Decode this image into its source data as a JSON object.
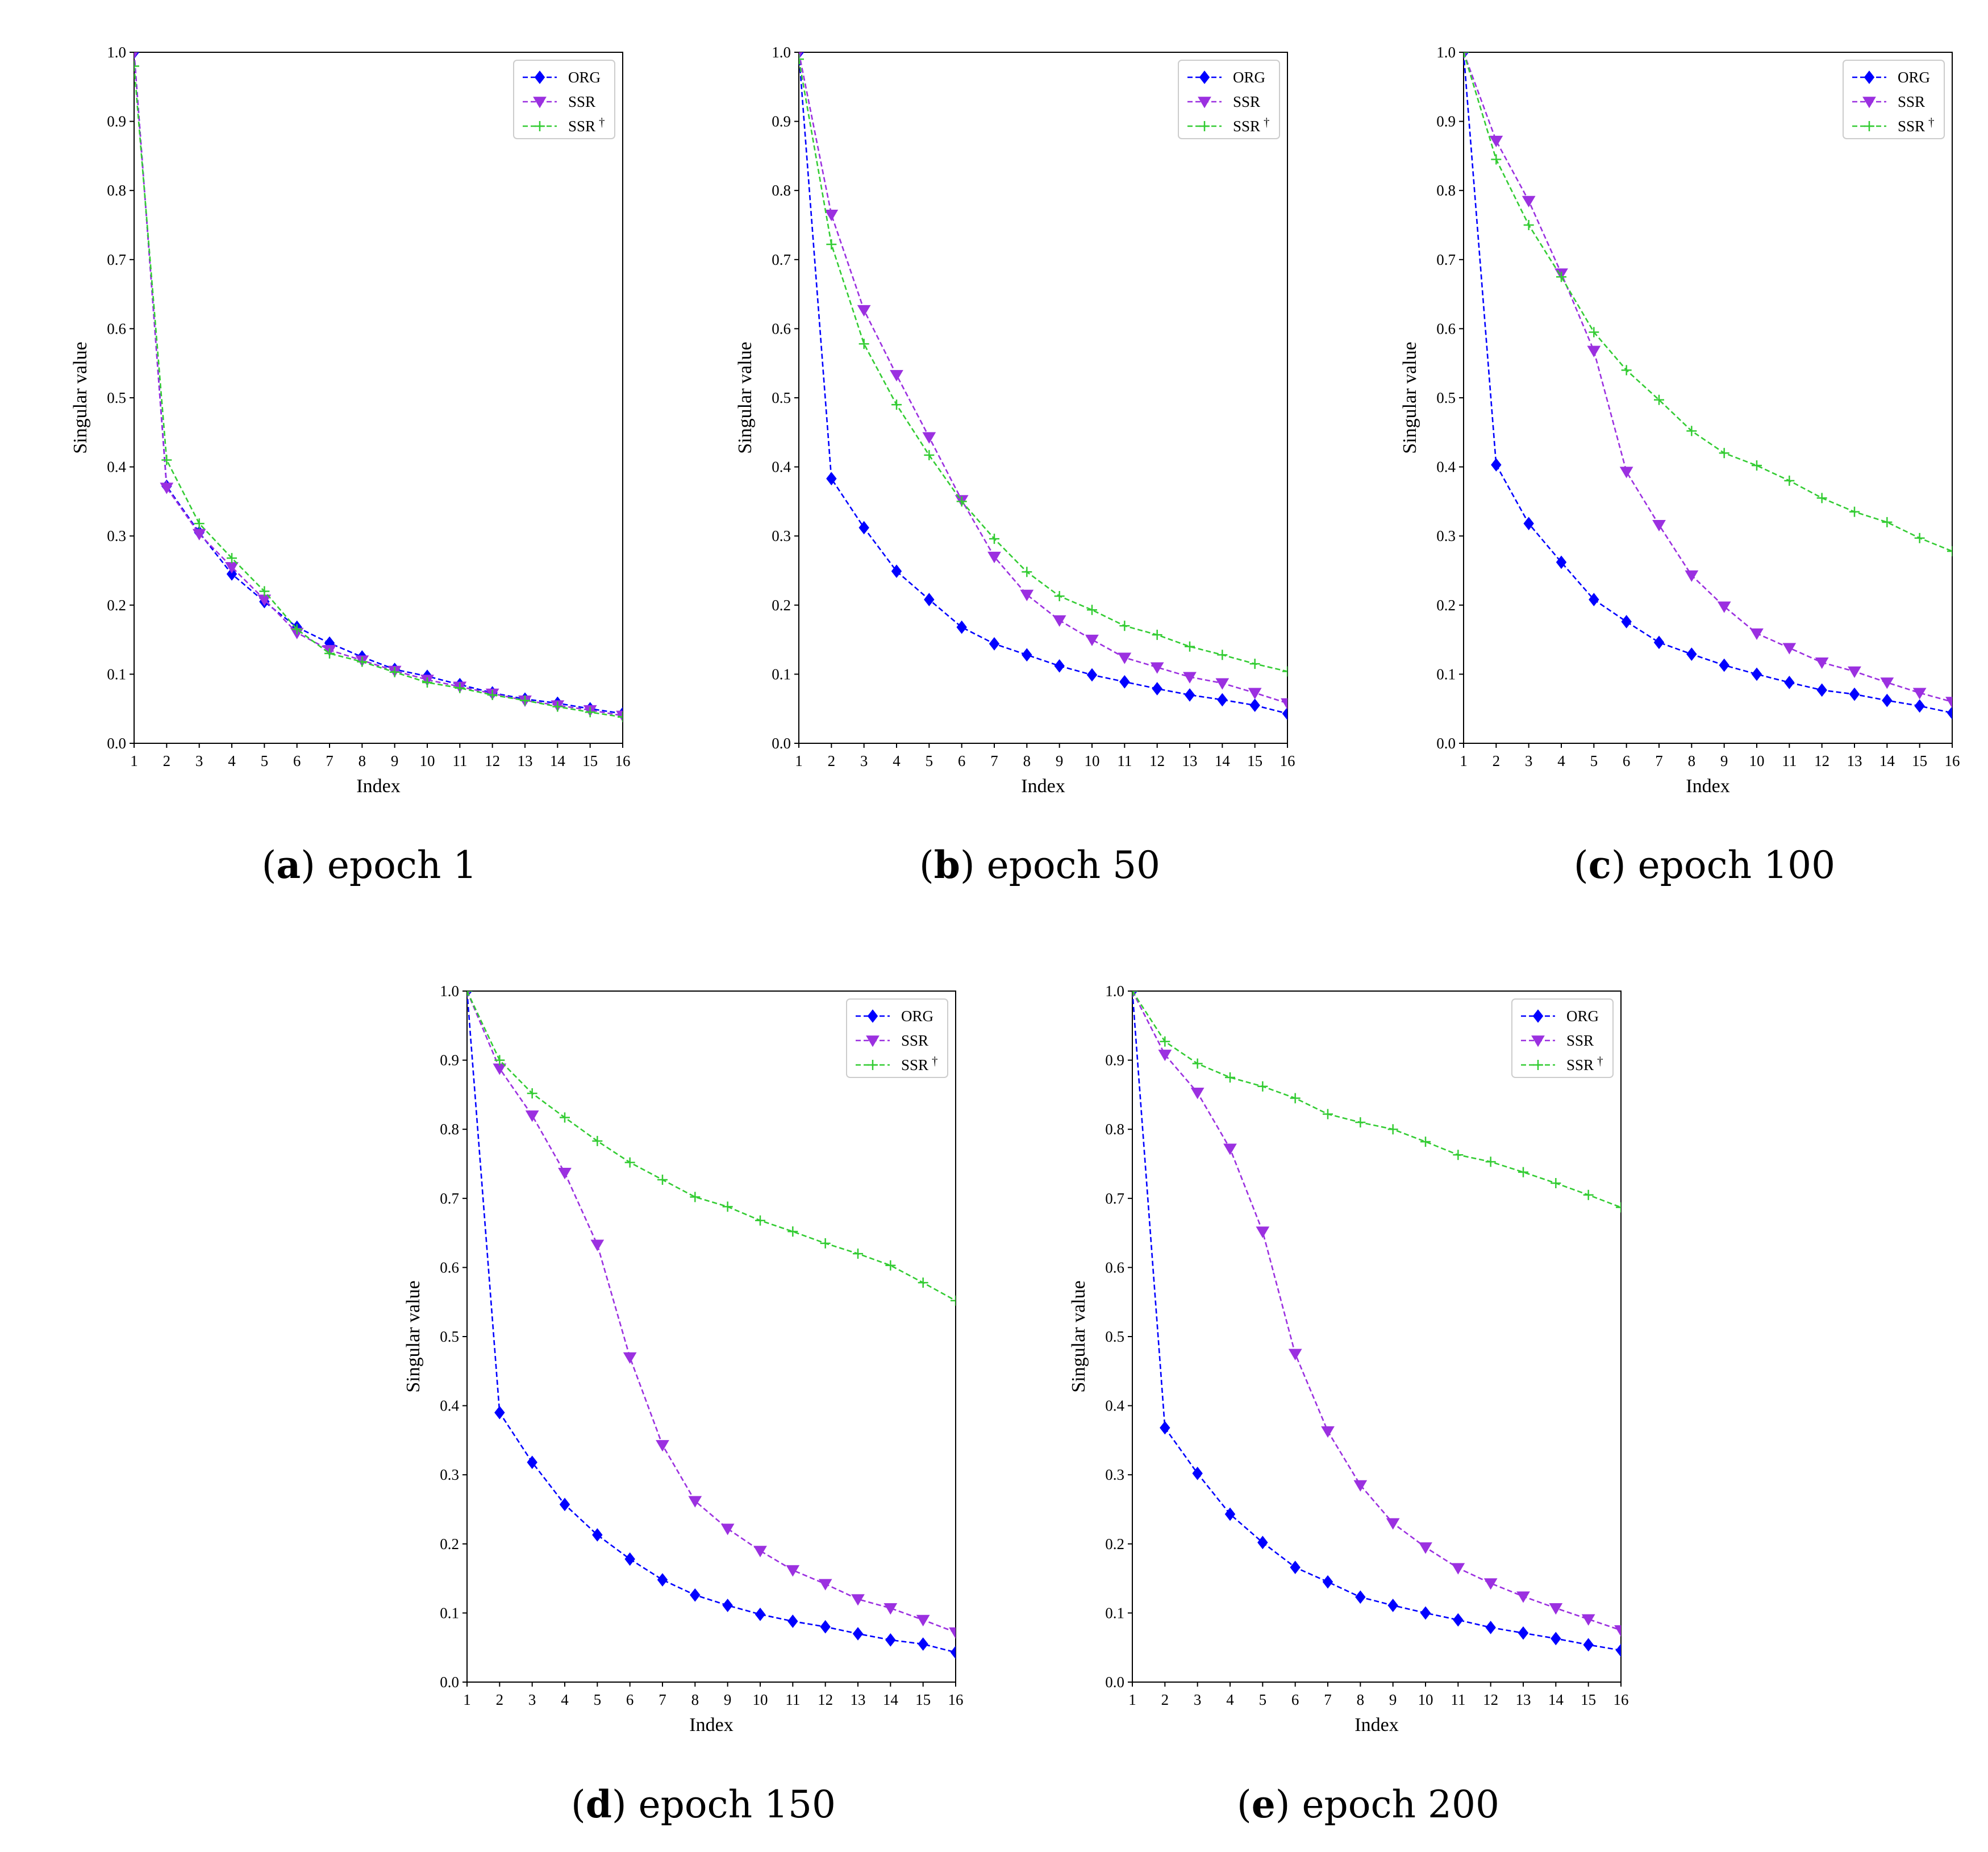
{
  "colors": {
    "ORG": "#0000ff",
    "SSR": "#9b30e0",
    "SSR_dagger": "#33cc33",
    "axis": "#000000"
  },
  "chart_data": [
    {
      "type": "line",
      "caption_letter": "a",
      "caption_text": " epoch 1",
      "xlabel": "Index",
      "ylabel": "Singular value",
      "xlim": [
        1,
        16
      ],
      "ylim": [
        0.0,
        1.0
      ],
      "xticks": [
        "1",
        "2",
        "3",
        "4",
        "5",
        "6",
        "7",
        "8",
        "9",
        "10",
        "11",
        "12",
        "13",
        "14",
        "15",
        "16"
      ],
      "yticks": [
        "0.0",
        "0.1",
        "0.2",
        "0.3",
        "0.4",
        "0.5",
        "0.6",
        "0.7",
        "0.8",
        "0.9",
        "1.0"
      ],
      "legend": "top-right",
      "x": [
        1,
        2,
        3,
        4,
        5,
        6,
        7,
        8,
        9,
        10,
        11,
        12,
        13,
        14,
        15,
        16
      ],
      "series": [
        {
          "name": "ORG",
          "legend_label": "ORG",
          "marker": "diamond",
          "values": [
            1.0,
            0.372,
            0.305,
            0.245,
            0.205,
            0.168,
            0.145,
            0.125,
            0.107,
            0.097,
            0.085,
            0.073,
            0.064,
            0.058,
            0.05,
            0.043
          ]
        },
        {
          "name": "SSR",
          "legend_label": "SSR",
          "marker": "triangle-down",
          "values": [
            1.0,
            0.37,
            0.303,
            0.255,
            0.208,
            0.16,
            0.135,
            0.12,
            0.105,
            0.092,
            0.082,
            0.072,
            0.062,
            0.055,
            0.048,
            0.04
          ]
        },
        {
          "name": "SSR_dagger",
          "legend_label": "SSR",
          "legend_sup": "†",
          "marker": "plus",
          "values": [
            0.98,
            0.41,
            0.318,
            0.268,
            0.22,
            0.165,
            0.13,
            0.118,
            0.103,
            0.088,
            0.08,
            0.07,
            0.062,
            0.053,
            0.045,
            0.038
          ]
        }
      ]
    },
    {
      "type": "line",
      "caption_letter": "b",
      "caption_text": " epoch 50",
      "xlabel": "Index",
      "ylabel": "Singular value",
      "xlim": [
        1,
        16
      ],
      "ylim": [
        0.0,
        1.0
      ],
      "xticks": [
        "1",
        "2",
        "3",
        "4",
        "5",
        "6",
        "7",
        "8",
        "9",
        "10",
        "11",
        "12",
        "13",
        "14",
        "15",
        "16"
      ],
      "yticks": [
        "0.0",
        "0.1",
        "0.2",
        "0.3",
        "0.4",
        "0.5",
        "0.6",
        "0.7",
        "0.8",
        "0.9",
        "1.0"
      ],
      "legend": "top-right",
      "x": [
        1,
        2,
        3,
        4,
        5,
        6,
        7,
        8,
        9,
        10,
        11,
        12,
        13,
        14,
        15,
        16
      ],
      "series": [
        {
          "name": "ORG",
          "legend_label": "ORG",
          "marker": "diamond",
          "values": [
            1.0,
            0.383,
            0.312,
            0.249,
            0.208,
            0.168,
            0.144,
            0.128,
            0.112,
            0.099,
            0.089,
            0.079,
            0.07,
            0.063,
            0.055,
            0.043
          ]
        },
        {
          "name": "SSR",
          "legend_label": "SSR",
          "marker": "triangle-down",
          "values": [
            1.0,
            0.765,
            0.627,
            0.533,
            0.443,
            0.352,
            0.27,
            0.215,
            0.178,
            0.15,
            0.124,
            0.11,
            0.096,
            0.087,
            0.073,
            0.058
          ]
        },
        {
          "name": "SSR_dagger",
          "legend_label": "SSR",
          "legend_sup": "†",
          "marker": "plus",
          "values": [
            0.99,
            0.722,
            0.578,
            0.49,
            0.417,
            0.35,
            0.296,
            0.248,
            0.213,
            0.193,
            0.17,
            0.157,
            0.14,
            0.128,
            0.115,
            0.104
          ]
        }
      ]
    },
    {
      "type": "line",
      "caption_letter": "c",
      "caption_text": " epoch 100",
      "xlabel": "Index",
      "ylabel": "Singular value",
      "xlim": [
        1,
        16
      ],
      "ylim": [
        0.0,
        1.0
      ],
      "xticks": [
        "1",
        "2",
        "3",
        "4",
        "5",
        "6",
        "7",
        "8",
        "9",
        "10",
        "11",
        "12",
        "13",
        "14",
        "15",
        "16"
      ],
      "yticks": [
        "0.0",
        "0.1",
        "0.2",
        "0.3",
        "0.4",
        "0.5",
        "0.6",
        "0.7",
        "0.8",
        "0.9",
        "1.0"
      ],
      "legend": "top-right",
      "x": [
        1,
        2,
        3,
        4,
        5,
        6,
        7,
        8,
        9,
        10,
        11,
        12,
        13,
        14,
        15,
        16
      ],
      "series": [
        {
          "name": "ORG",
          "legend_label": "ORG",
          "marker": "diamond",
          "values": [
            1.0,
            0.403,
            0.318,
            0.262,
            0.208,
            0.176,
            0.146,
            0.129,
            0.113,
            0.1,
            0.088,
            0.077,
            0.071,
            0.062,
            0.054,
            0.044
          ]
        },
        {
          "name": "SSR",
          "legend_label": "SSR",
          "marker": "triangle-down",
          "values": [
            1.0,
            0.872,
            0.785,
            0.68,
            0.568,
            0.393,
            0.316,
            0.243,
            0.198,
            0.159,
            0.138,
            0.117,
            0.104,
            0.088,
            0.073,
            0.06
          ]
        },
        {
          "name": "SSR_dagger",
          "legend_label": "SSR",
          "legend_sup": "†",
          "marker": "plus",
          "values": [
            1.0,
            0.845,
            0.75,
            0.675,
            0.595,
            0.54,
            0.497,
            0.452,
            0.42,
            0.402,
            0.38,
            0.355,
            0.335,
            0.32,
            0.297,
            0.278
          ]
        }
      ]
    },
    {
      "type": "line",
      "caption_letter": "d",
      "caption_text": " epoch 150",
      "xlabel": "Index",
      "ylabel": "Singular value",
      "xlim": [
        1,
        16
      ],
      "ylim": [
        0.0,
        1.0
      ],
      "xticks": [
        "1",
        "2",
        "3",
        "4",
        "5",
        "6",
        "7",
        "8",
        "9",
        "10",
        "11",
        "12",
        "13",
        "14",
        "15",
        "16"
      ],
      "yticks": [
        "0.0",
        "0.1",
        "0.2",
        "0.3",
        "0.4",
        "0.5",
        "0.6",
        "0.7",
        "0.8",
        "0.9",
        "1.0"
      ],
      "legend": "top-right",
      "x": [
        1,
        2,
        3,
        4,
        5,
        6,
        7,
        8,
        9,
        10,
        11,
        12,
        13,
        14,
        15,
        16
      ],
      "series": [
        {
          "name": "ORG",
          "legend_label": "ORG",
          "marker": "diamond",
          "values": [
            1.0,
            0.39,
            0.318,
            0.257,
            0.213,
            0.178,
            0.148,
            0.126,
            0.111,
            0.098,
            0.088,
            0.08,
            0.07,
            0.061,
            0.055,
            0.043
          ]
        },
        {
          "name": "SSR",
          "legend_label": "SSR",
          "marker": "triangle-down",
          "values": [
            1.0,
            0.888,
            0.82,
            0.737,
            0.633,
            0.47,
            0.343,
            0.262,
            0.222,
            0.19,
            0.162,
            0.142,
            0.12,
            0.107,
            0.09,
            0.072
          ]
        },
        {
          "name": "SSR_dagger",
          "legend_label": "SSR",
          "legend_sup": "†",
          "marker": "plus",
          "values": [
            1.0,
            0.9,
            0.852,
            0.817,
            0.783,
            0.752,
            0.727,
            0.702,
            0.688,
            0.668,
            0.652,
            0.635,
            0.62,
            0.603,
            0.578,
            0.552
          ]
        }
      ]
    },
    {
      "type": "line",
      "caption_letter": "e",
      "caption_text": " epoch 200",
      "xlabel": "Index",
      "ylabel": "Singular value",
      "xlim": [
        1,
        16
      ],
      "ylim": [
        0.0,
        1.0
      ],
      "xticks": [
        "1",
        "2",
        "3",
        "4",
        "5",
        "6",
        "7",
        "8",
        "9",
        "10",
        "11",
        "12",
        "13",
        "14",
        "15",
        "16"
      ],
      "yticks": [
        "0.0",
        "0.1",
        "0.2",
        "0.3",
        "0.4",
        "0.5",
        "0.6",
        "0.7",
        "0.8",
        "0.9",
        "1.0"
      ],
      "legend": "top-right",
      "x": [
        1,
        2,
        3,
        4,
        5,
        6,
        7,
        8,
        9,
        10,
        11,
        12,
        13,
        14,
        15,
        16
      ],
      "series": [
        {
          "name": "ORG",
          "legend_label": "ORG",
          "marker": "diamond",
          "values": [
            1.0,
            0.368,
            0.302,
            0.243,
            0.202,
            0.166,
            0.145,
            0.123,
            0.111,
            0.1,
            0.09,
            0.079,
            0.071,
            0.063,
            0.054,
            0.046
          ]
        },
        {
          "name": "SSR",
          "legend_label": "SSR",
          "marker": "triangle-down",
          "values": [
            1.0,
            0.908,
            0.853,
            0.772,
            0.652,
            0.475,
            0.363,
            0.285,
            0.23,
            0.195,
            0.165,
            0.143,
            0.124,
            0.107,
            0.091,
            0.075
          ]
        },
        {
          "name": "SSR_dagger",
          "legend_label": "SSR",
          "legend_sup": "†",
          "marker": "plus",
          "values": [
            1.0,
            0.927,
            0.895,
            0.875,
            0.862,
            0.845,
            0.822,
            0.81,
            0.8,
            0.782,
            0.763,
            0.753,
            0.738,
            0.722,
            0.705,
            0.687
          ]
        }
      ]
    }
  ]
}
